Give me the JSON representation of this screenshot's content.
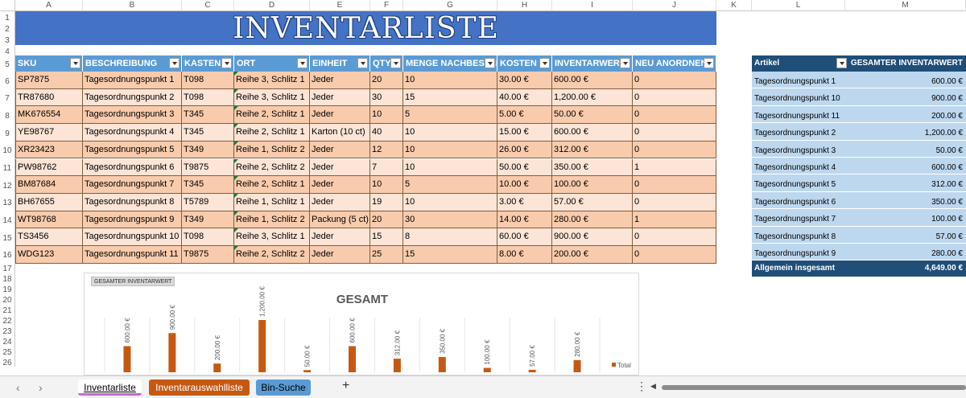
{
  "columns": [
    "A",
    "B",
    "C",
    "D",
    "E",
    "F",
    "G",
    "H",
    "I",
    "J",
    "K",
    "L",
    "M"
  ],
  "rows": [
    "1",
    "2",
    "3",
    "4",
    "5",
    "6",
    "7",
    "8",
    "9",
    "10",
    "11",
    "12",
    "13",
    "14",
    "15",
    "16",
    "17",
    "18",
    "19",
    "20",
    "21",
    "22",
    "23",
    "24",
    "25",
    "26"
  ],
  "title": "INVENTARLISTE",
  "table": {
    "headers": [
      "SKU",
      "BESCHREIBUNG",
      "KASTEN #",
      "ORT",
      "EINHEIT",
      "QTY",
      "MENGE NACHBESTELLEN",
      "KOSTEN",
      "INVENTARWERT",
      "NEU ANORDNEN"
    ],
    "rows": [
      [
        "SP7875",
        "Tagesordnungspunkt 1",
        "T098",
        "Reihe 3, Schlitz 1",
        "Jeder",
        "20",
        "10",
        "30.00 €",
        "600.00 €",
        "0"
      ],
      [
        "TR87680",
        "Tagesordnungspunkt 2",
        "T098",
        "Reihe 3, Schlitz 1",
        "Jeder",
        "30",
        "15",
        "40.00 €",
        "1,200.00 €",
        "0"
      ],
      [
        "MK676554",
        "Tagesordnungspunkt 3",
        "T345",
        "Reihe 2, Schlitz 1",
        "Jeder",
        "10",
        "5",
        "5.00 €",
        "50.00 €",
        "0"
      ],
      [
        "YE98767",
        "Tagesordnungspunkt 4",
        "T345",
        "Reihe 2, Schlitz 1",
        "Karton (10 ct)",
        "40",
        "10",
        "15.00 €",
        "600.00 €",
        "0"
      ],
      [
        "XR23423",
        "Tagesordnungspunkt 5",
        "T349",
        "Reihe 1, Schlitz 2",
        "Jeder",
        "12",
        "10",
        "26.00 €",
        "312.00 €",
        "0"
      ],
      [
        "PW98762",
        "Tagesordnungspunkt 6",
        "T9875",
        "Reihe 2, Schlitz 2",
        "Jeder",
        "7",
        "10",
        "50.00 €",
        "350.00 €",
        "1"
      ],
      [
        "BM87684",
        "Tagesordnungspunkt 7",
        "T345",
        "Reihe 2, Schlitz 1",
        "Jeder",
        "10",
        "5",
        "10.00 €",
        "100.00 €",
        "0"
      ],
      [
        "BH67655",
        "Tagesordnungspunkt 8",
        "T5789",
        "Reihe 1, Schlitz 1",
        "Jeder",
        "19",
        "10",
        "3.00 €",
        "57.00 €",
        "0"
      ],
      [
        "WT98768",
        "Tagesordnungspunkt 9",
        "T349",
        "Reihe 1, Schlitz 2",
        "Packung (5 ct)",
        "20",
        "30",
        "14.00 €",
        "280.00 €",
        "1"
      ],
      [
        "TS3456",
        "Tagesordnungspunkt 10",
        "T098",
        "Reihe 3, Schlitz 1",
        "Jeder",
        "15",
        "8",
        "60.00 €",
        "900.00 €",
        "0"
      ],
      [
        "WDG123",
        "Tagesordnungspunkt 11",
        "T9875",
        "Reihe 2, Schlitz 2",
        "Jeder",
        "25",
        "15",
        "8.00 €",
        "200.00 €",
        "0"
      ]
    ]
  },
  "pivot": {
    "header_label": "Artikel",
    "header_value": "GESAMTER INVENTARWERT",
    "rows": [
      {
        "label": "Tagesordnungspunkt 1",
        "value": "600.00 €"
      },
      {
        "label": "Tagesordnungspunkt 10",
        "value": "900.00 €"
      },
      {
        "label": "Tagesordnungspunkt 11",
        "value": "200.00 €"
      },
      {
        "label": "Tagesordnungspunkt 2",
        "value": "1,200.00 €"
      },
      {
        "label": "Tagesordnungspunkt 3",
        "value": "50.00 €"
      },
      {
        "label": "Tagesordnungspunkt 4",
        "value": "600.00 €"
      },
      {
        "label": "Tagesordnungspunkt 5",
        "value": "312.00 €"
      },
      {
        "label": "Tagesordnungspunkt 6",
        "value": "350.00 €"
      },
      {
        "label": "Tagesordnungspunkt 7",
        "value": "100.00 €"
      },
      {
        "label": "Tagesordnungspunkt 8",
        "value": "57.00 €"
      },
      {
        "label": "Tagesordnungspunkt 9",
        "value": "280.00 €"
      }
    ],
    "total_label": "Allgemein insgesamt",
    "total_value": "4,649.00 €"
  },
  "chart_data": {
    "type": "bar",
    "field_button": "GESAMTER INVENTARWERT",
    "title": "GESAMT",
    "series": [
      {
        "name": "Total",
        "values": [
          600,
          900,
          200,
          1200,
          50,
          600,
          312,
          350,
          100,
          57,
          280
        ]
      }
    ],
    "data_labels": [
      "600.00 €",
      "900.00 €",
      "200.00 €",
      "1,200.00 €",
      "50.00 €",
      "600.00 €",
      "312.00 €",
      "350.00 €",
      "100.00 €",
      "57.00 €",
      "280.00 €"
    ],
    "ylim": [
      0,
      1200
    ],
    "legend": "right",
    "grid": true,
    "bar_color": "#c65911"
  },
  "sheet_tabs": [
    {
      "label": "Inventarliste",
      "active": true
    },
    {
      "label": "Inventarauswahlliste",
      "active": false
    },
    {
      "label": "Bin-Suche",
      "active": false
    }
  ],
  "icons": {
    "prev_sheet": "chevron-left-icon",
    "next_sheet": "chevron-right-icon",
    "add_sheet": "plus-icon",
    "more": "more-vertical-icon"
  }
}
